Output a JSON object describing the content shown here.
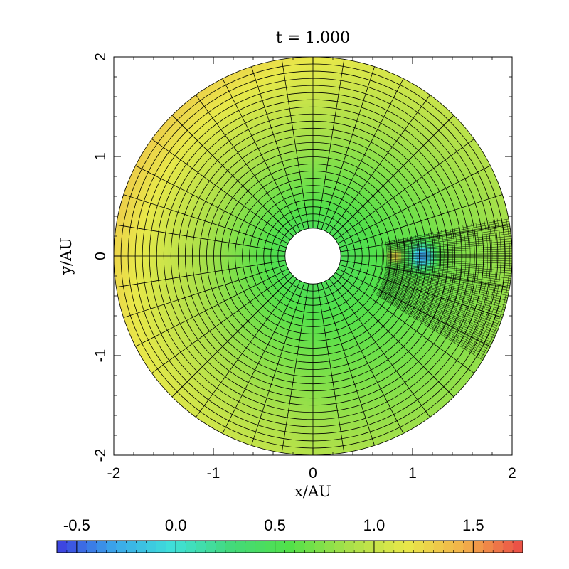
{
  "chart_data": {
    "type": "heatmap",
    "subtype": "polar-grid disk (AMR mesh)",
    "title": "t = 1.000",
    "xlabel": "x/AU",
    "ylabel": "y/AU",
    "xlim": [
      -2,
      2
    ],
    "ylim": [
      -2,
      2
    ],
    "xticks": [
      "-2",
      "-1",
      "0",
      "1",
      "2"
    ],
    "yticks": [
      "-2",
      "-1",
      "0",
      "1",
      "2"
    ],
    "grid": "polar mesh lines drawn",
    "domain": {
      "r_inner": 0.28,
      "r_outer": 2.0,
      "radial_cells": 24,
      "azimuthal_cells": 40
    },
    "colorbar": {
      "range": [
        -0.6,
        1.75
      ],
      "ticks": [
        "-0.5",
        "0.0",
        "0.5",
        "1.0",
        "1.5"
      ],
      "tick_values": [
        -0.5,
        0.0,
        0.5,
        1.0,
        1.5
      ],
      "placement": "bottom",
      "colors": [
        "#3d3de0",
        "#3aa8ea",
        "#3fe0d8",
        "#43d97a",
        "#52e04a",
        "#a8e04a",
        "#e8e84a",
        "#f2b04a",
        "#ea4a46"
      ]
    },
    "field_model": {
      "description": "value increases with radius, highest toward upper-left; perturbation (wake) near x≈1, y≈0",
      "base_inner": 0.5,
      "base_outer": 1.05,
      "azimuthal_amplitude": 0.25,
      "peak_direction_deg": 150,
      "perturbation": {
        "center": [
          1.1,
          0.0
        ],
        "min_value": -0.55,
        "shock_value": 1.6
      }
    }
  }
}
